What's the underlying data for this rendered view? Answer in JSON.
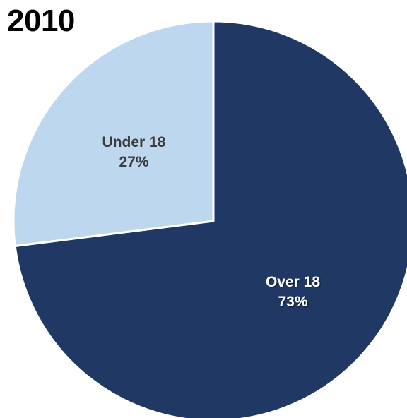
{
  "chart_data": {
    "type": "pie",
    "title": "2010",
    "slices": [
      {
        "label": "Over 18",
        "value": 73,
        "value_label": "73%",
        "color": "#1f3864"
      },
      {
        "label": "Under 18",
        "value": 27,
        "value_label": "27%",
        "color": "#bdd7ee"
      }
    ],
    "start_angle": "12 o'clock",
    "direction": "clockwise",
    "slice_border_color": "#ffffff",
    "label_color_dark_slice": "#ffffff",
    "label_color_light_slice": "#3b3b3b"
  }
}
